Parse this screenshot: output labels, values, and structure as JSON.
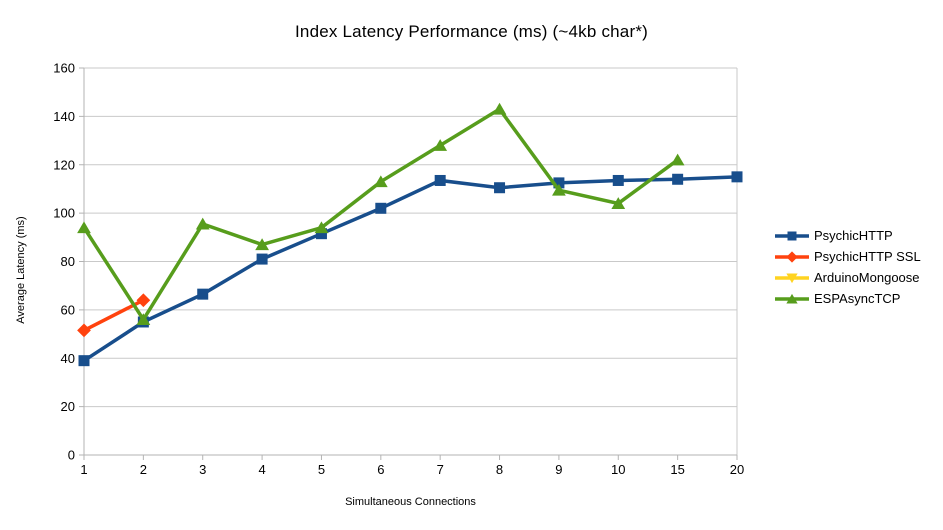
{
  "chart_data": {
    "type": "line",
    "title": "Index Latency Performance (ms) (~4kb char*)",
    "xlabel": "Simultaneous Connections",
    "ylabel": "Average Latency (ms)",
    "categories": [
      "1",
      "2",
      "3",
      "4",
      "5",
      "6",
      "7",
      "8",
      "9",
      "10",
      "15",
      "20"
    ],
    "ylim": [
      0,
      160
    ],
    "ytick_step": 20,
    "grid": "horizontal",
    "legend_position": "right",
    "background_color": "#FFFFFF",
    "grid_color": "#C9C9C9",
    "axis_color": "#B3B3B3",
    "text_color": "#000000",
    "series": [
      {
        "name": "PsychicHTTP",
        "color": "#184E8C",
        "marker": "square",
        "values": [
          39,
          55,
          66.5,
          81,
          91.5,
          102,
          113.5,
          110.5,
          112.5,
          113.5,
          114,
          115
        ]
      },
      {
        "name": "PsychicHTTP SSL",
        "color": "#FF420E",
        "marker": "diamond",
        "values": [
          51.5,
          64,
          null,
          null,
          null,
          null,
          null,
          null,
          null,
          null,
          null,
          null
        ]
      },
      {
        "name": "ArduinoMongoose",
        "color": "#FFD320",
        "marker": "triangle-down",
        "values": [
          null,
          null,
          null,
          null,
          null,
          null,
          null,
          null,
          null,
          null,
          null,
          null
        ]
      },
      {
        "name": "ESPAsyncTCP",
        "color": "#579D1C",
        "marker": "triangle-up",
        "values": [
          94,
          56,
          95.5,
          87,
          94,
          113,
          128,
          143,
          109.5,
          104,
          122,
          null
        ]
      }
    ]
  }
}
